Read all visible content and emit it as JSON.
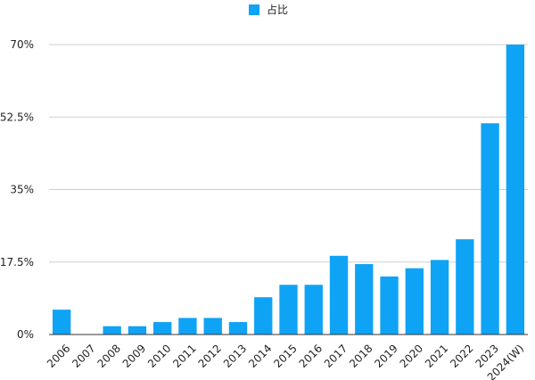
{
  "chart_data": {
    "type": "bar",
    "legend": {
      "position": "top-center",
      "label": "占比"
    },
    "categories": [
      "2006",
      "2007",
      "2008",
      "2009",
      "2010",
      "2011",
      "2012",
      "2013",
      "2014",
      "2015",
      "2016",
      "2017",
      "2018",
      "2019",
      "2020",
      "2021",
      "2022",
      "2023",
      "2024(W)"
    ],
    "series": [
      {
        "name": "占比",
        "values": [
          6,
          0,
          2,
          2,
          3,
          4,
          4,
          3,
          9,
          12,
          12,
          19,
          17,
          14,
          16,
          18,
          23,
          51,
          70
        ]
      }
    ],
    "y_ticks": [
      0,
      17.5,
      35,
      52.5,
      70
    ],
    "y_tick_labels": [
      "0%",
      "17.5%",
      "35%",
      "52.5%",
      "70%"
    ],
    "ylim": [
      0,
      70
    ],
    "grid": true,
    "colors": {
      "bar": "#0FA3F5",
      "grid": "#cfcfcf",
      "axis": "#333333",
      "text": "#222222"
    }
  }
}
